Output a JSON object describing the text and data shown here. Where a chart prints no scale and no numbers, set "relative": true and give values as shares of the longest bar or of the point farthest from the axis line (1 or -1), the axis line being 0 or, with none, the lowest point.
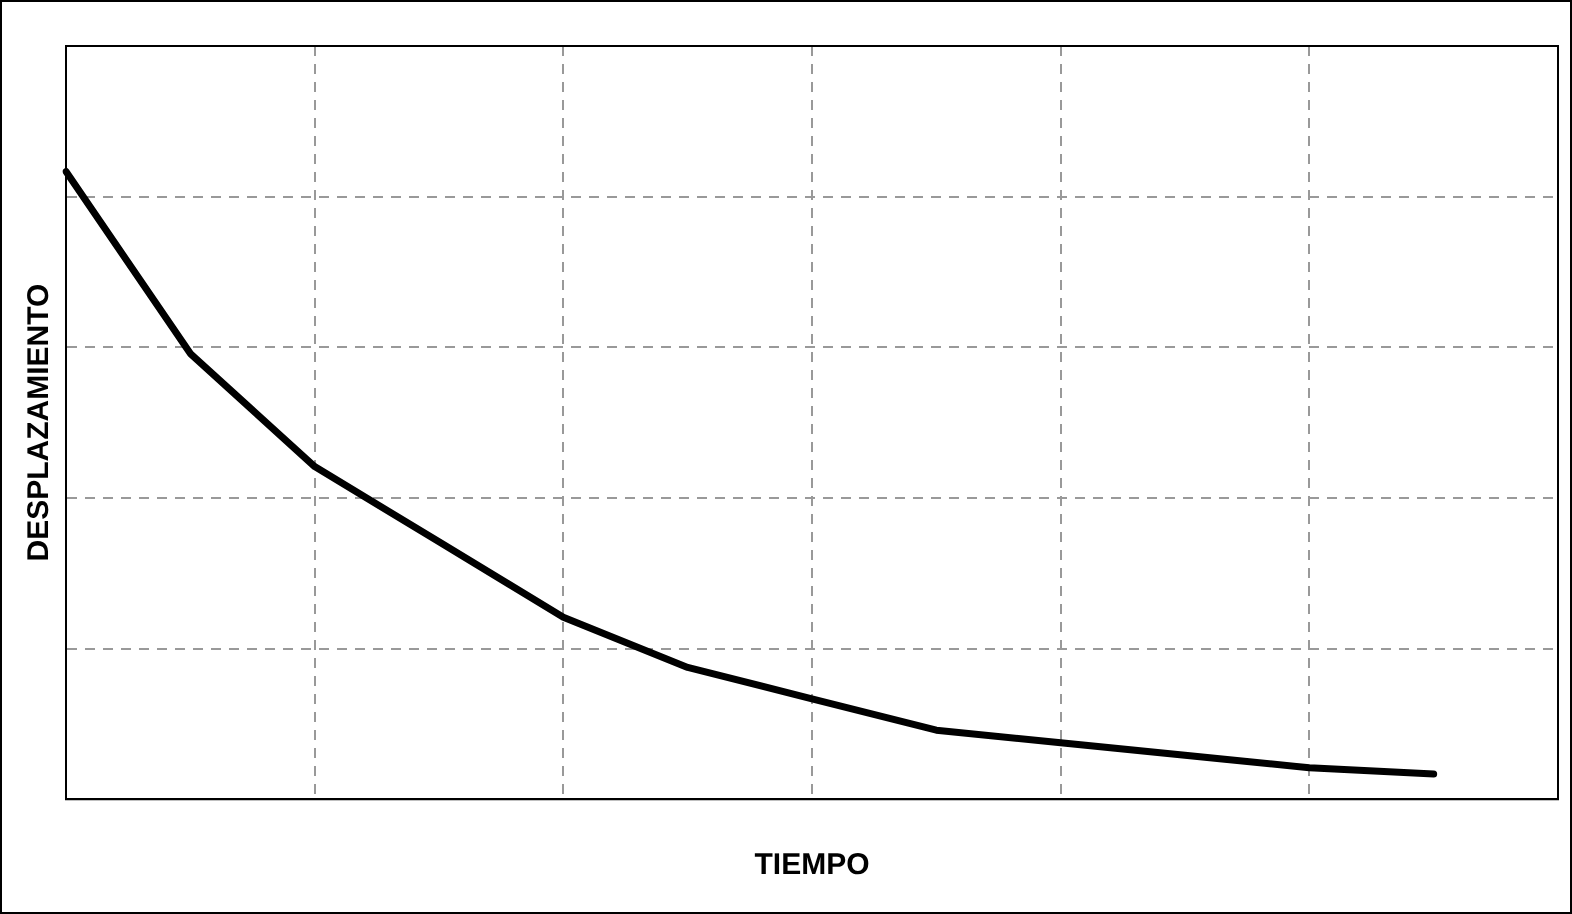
{
  "chart_data": {
    "type": "line",
    "xlabel": "TIEMPO",
    "ylabel": "DESPLAZAMIENTO",
    "relative": true,
    "grid": true,
    "line_style": "solid",
    "marker": "none",
    "categories": [
      null,
      null,
      null,
      null,
      null,
      null,
      null,
      null,
      null,
      null,
      null,
      null,
      null
    ],
    "series": [
      {
        "color": "#000000",
        "values": [
          1,
          0.71,
          0.53,
          0.41,
          0.29,
          0.21,
          0.16,
          0.11,
          0.09,
          0.07,
          0.05,
          0.04,
          null
        ]
      }
    ]
  }
}
